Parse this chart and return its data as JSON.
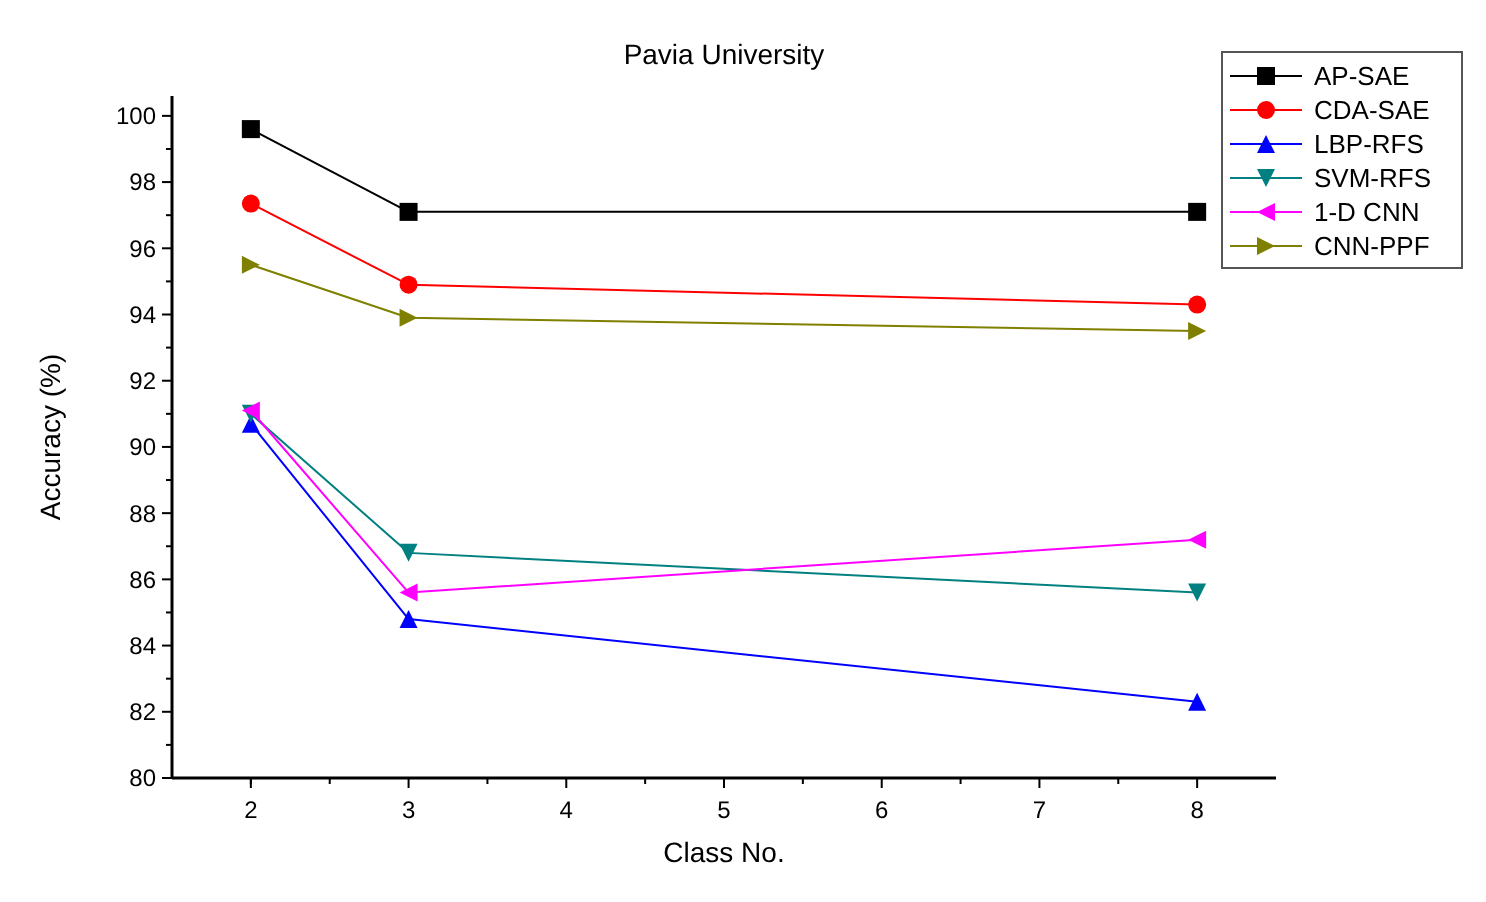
{
  "chart_data": {
    "type": "line",
    "title": "Pavia University",
    "xlabel": "Class No.",
    "ylabel": "Accuracy (%)",
    "x": [
      2,
      3,
      8
    ],
    "xlim": [
      1.5,
      8.5
    ],
    "xticks": [
      2,
      3,
      4,
      5,
      6,
      7,
      8
    ],
    "ylim": [
      80,
      100.6
    ],
    "yticks": [
      80,
      82,
      84,
      86,
      88,
      90,
      92,
      94,
      96,
      98,
      100
    ],
    "legend": "top right",
    "grid": false,
    "line_style": "solid",
    "series": [
      {
        "name": "AP-SAE",
        "color": "#000000",
        "marker": "square",
        "values": [
          99.6,
          97.1,
          97.1
        ]
      },
      {
        "name": "CDA-SAE",
        "color": "#ff0000",
        "marker": "circle",
        "values": [
          97.35,
          94.9,
          94.3
        ]
      },
      {
        "name": "LBP-RFS",
        "color": "#0000ff",
        "marker": "triangle",
        "values": [
          90.7,
          84.8,
          82.3
        ]
      },
      {
        "name": "SVM-RFS",
        "color": "#008080",
        "marker": "triangle-down",
        "values": [
          91.0,
          86.8,
          85.6
        ]
      },
      {
        "name": "1-D CNN",
        "color": "#ff00ff",
        "marker": "triangle-left",
        "values": [
          91.1,
          85.6,
          87.2
        ]
      },
      {
        "name": "CNN-PPF",
        "color": "#808000",
        "marker": "triangle-right",
        "values": [
          95.5,
          93.9,
          93.5
        ]
      }
    ]
  }
}
